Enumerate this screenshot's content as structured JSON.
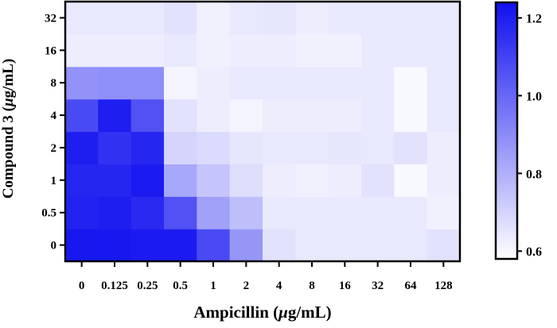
{
  "chart_data": {
    "type": "heatmap",
    "xlabel_main": "Ampicillin (",
    "xlabel_mu": "μ",
    "xlabel_unit": "g/mL)",
    "ylabel_main": "Compound 3 (",
    "ylabel_mu": "μ",
    "ylabel_unit": "g/mL)",
    "x_categories": [
      "0",
      "0.125",
      "0.25",
      "0.5",
      "1",
      "2",
      "4",
      "8",
      "16",
      "32",
      "64",
      "128"
    ],
    "y_categories": [
      "0",
      "0.5",
      "1",
      "2",
      "4",
      "8",
      "16",
      "32"
    ],
    "values": [
      [
        1.22,
        1.22,
        1.21,
        1.21,
        1.08,
        0.87,
        0.66,
        0.64,
        0.64,
        0.64,
        0.64,
        0.66
      ],
      [
        1.19,
        1.2,
        1.17,
        1.06,
        0.84,
        0.76,
        0.64,
        0.64,
        0.64,
        0.64,
        0.64,
        0.62
      ],
      [
        1.18,
        1.18,
        1.21,
        0.82,
        0.74,
        0.67,
        0.63,
        0.62,
        0.63,
        0.66,
        0.6,
        0.63
      ],
      [
        1.2,
        1.15,
        1.18,
        0.7,
        0.68,
        0.65,
        0.64,
        0.64,
        0.65,
        0.64,
        0.66,
        0.63
      ],
      [
        1.08,
        1.2,
        1.06,
        0.66,
        0.63,
        0.61,
        0.63,
        0.63,
        0.63,
        0.64,
        0.6,
        0.64
      ],
      [
        0.88,
        0.89,
        0.89,
        0.61,
        0.63,
        0.64,
        0.64,
        0.64,
        0.64,
        0.64,
        0.6,
        0.64
      ],
      [
        0.63,
        0.63,
        0.63,
        0.64,
        0.62,
        0.63,
        0.63,
        0.62,
        0.62,
        0.64,
        0.64,
        0.64
      ],
      [
        0.64,
        0.64,
        0.64,
        0.66,
        0.62,
        0.64,
        0.65,
        0.63,
        0.64,
        0.64,
        0.64,
        0.64
      ]
    ],
    "zlim": [
      0.58,
      1.24
    ],
    "colorbar_ticks": [
      "0.6",
      "0.8",
      "1.0",
      "1.2"
    ],
    "colorbar_tick_values": [
      0.6,
      0.8,
      1.0,
      1.2
    ],
    "color_low": "#ffffff",
    "color_high": "#1010f0",
    "grid": false,
    "legend": "colorbar-right"
  }
}
